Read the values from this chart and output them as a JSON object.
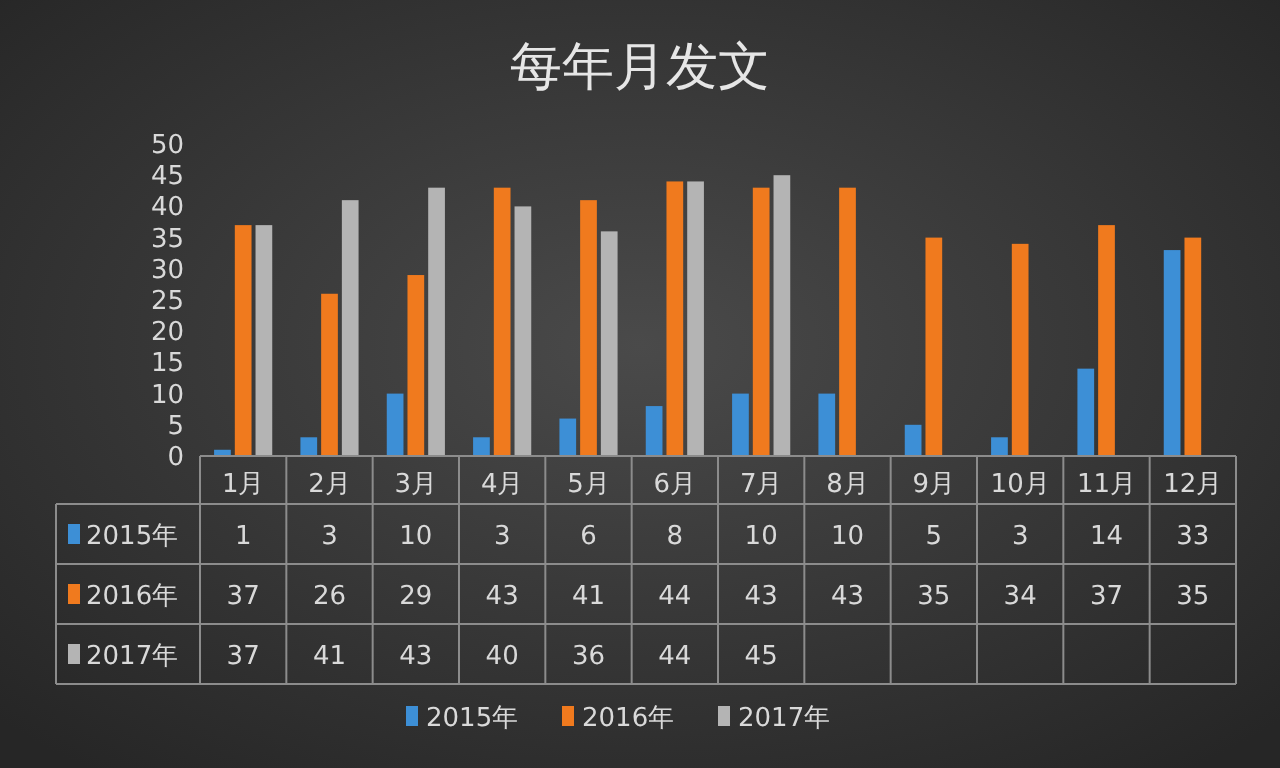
{
  "chart_data": {
    "type": "bar",
    "title": "每年月发文",
    "categories": [
      "1月",
      "2月",
      "3月",
      "4月",
      "5月",
      "6月",
      "7月",
      "8月",
      "9月",
      "10月",
      "11月",
      "12月"
    ],
    "series": [
      {
        "name": "2015年",
        "color": "#3d8fd6",
        "values": [
          1,
          3,
          10,
          3,
          6,
          8,
          10,
          10,
          5,
          3,
          14,
          33
        ]
      },
      {
        "name": "2016年",
        "color": "#f07a1e",
        "values": [
          37,
          26,
          29,
          43,
          41,
          44,
          43,
          43,
          35,
          34,
          37,
          35
        ]
      },
      {
        "name": "2017年",
        "color": "#b4b4b4",
        "values": [
          37,
          41,
          43,
          40,
          36,
          44,
          45,
          null,
          null,
          null,
          null,
          null
        ]
      }
    ],
    "ylim": [
      0,
      50
    ],
    "yticks": [
      0,
      5,
      10,
      15,
      20,
      25,
      30,
      35,
      40,
      45,
      50
    ],
    "data_labels": true,
    "legend": "bottom"
  }
}
